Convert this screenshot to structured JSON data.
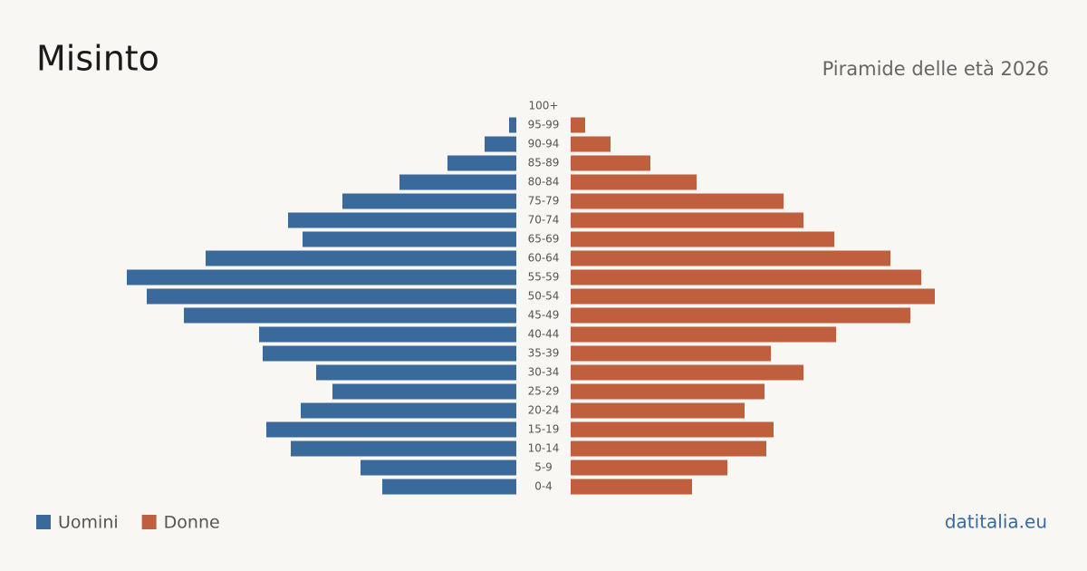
{
  "chart_data": {
    "type": "population-pyramid",
    "title": "Misinto",
    "subtitle": "Piramide delle età 2026",
    "source": "datitalia.eu",
    "categories": [
      "0-4",
      "5-9",
      "10-14",
      "15-19",
      "20-24",
      "25-29",
      "30-34",
      "35-39",
      "40-44",
      "45-49",
      "50-54",
      "55-59",
      "60-64",
      "65-69",
      "70-74",
      "75-79",
      "80-84",
      "85-89",
      "90-94",
      "95-99",
      "100+"
    ],
    "series": [
      {
        "name": "Uomini",
        "color": "#3a6a9b",
        "values": [
          148,
          172,
          249,
          276,
          238,
          203,
          221,
          280,
          284,
          367,
          408,
          430,
          343,
          236,
          252,
          192,
          129,
          76,
          35,
          8,
          0
        ]
      },
      {
        "name": "Donne",
        "color": "#bf5f3e",
        "values": [
          134,
          173,
          216,
          224,
          192,
          214,
          257,
          221,
          293,
          375,
          402,
          387,
          353,
          291,
          257,
          235,
          139,
          88,
          44,
          16,
          0
        ]
      }
    ]
  }
}
